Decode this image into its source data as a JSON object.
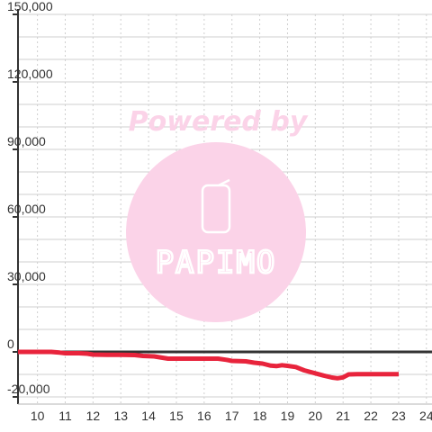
{
  "chart_data": {
    "type": "line",
    "title": "",
    "xlabel": "",
    "ylabel": "",
    "xlim": [
      9.3,
      24.2
    ],
    "ylim": [
      -20000,
      150000
    ],
    "x_ticks": [
      10,
      11,
      12,
      13,
      14,
      15,
      16,
      17,
      18,
      19,
      20,
      21,
      22,
      23,
      24
    ],
    "y_ticks": [
      -20000,
      0,
      30000,
      60000,
      90000,
      120000,
      150000
    ],
    "x_tick_labels": [
      "10",
      "11",
      "12",
      "13",
      "14",
      "15",
      "16",
      "17",
      "18",
      "19",
      "20",
      "21",
      "22",
      "23",
      "24"
    ],
    "y_tick_labels": [
      "-20,000",
      "0",
      "30,000",
      "60,000",
      "90,000",
      "120,000",
      "150,000"
    ],
    "grid": true,
    "legend": "none",
    "series": [
      {
        "color": "#e8243c",
        "points": [
          [
            9.3,
            0
          ],
          [
            10.0,
            0
          ],
          [
            10.5,
            0
          ],
          [
            10.8,
            -300
          ],
          [
            11.0,
            -600
          ],
          [
            11.5,
            -600
          ],
          [
            11.8,
            -800
          ],
          [
            12.0,
            -1200
          ],
          [
            12.5,
            -1300
          ],
          [
            13.0,
            -1300
          ],
          [
            13.5,
            -1400
          ],
          [
            13.8,
            -1800
          ],
          [
            14.2,
            -2000
          ],
          [
            14.5,
            -2600
          ],
          [
            14.7,
            -3000
          ],
          [
            15.0,
            -3000
          ],
          [
            15.5,
            -3000
          ],
          [
            16.0,
            -3000
          ],
          [
            16.5,
            -3000
          ],
          [
            16.8,
            -3500
          ],
          [
            17.0,
            -4000
          ],
          [
            17.5,
            -4200
          ],
          [
            17.8,
            -4800
          ],
          [
            18.1,
            -5200
          ],
          [
            18.4,
            -6100
          ],
          [
            18.6,
            -6300
          ],
          [
            18.8,
            -5900
          ],
          [
            19.0,
            -6200
          ],
          [
            19.3,
            -6700
          ],
          [
            19.6,
            -8200
          ],
          [
            20.0,
            -9500
          ],
          [
            20.3,
            -10500
          ],
          [
            20.6,
            -11400
          ],
          [
            20.8,
            -11700
          ],
          [
            21.0,
            -11300
          ],
          [
            21.2,
            -10000
          ],
          [
            21.5,
            -9900
          ],
          [
            22.0,
            -9900
          ],
          [
            22.5,
            -9900
          ],
          [
            23.0,
            -9900
          ]
        ]
      }
    ]
  },
  "watermark": {
    "caption": "Powered by",
    "brand": "PAPIMO",
    "circle_color": "#fbd3e8"
  }
}
